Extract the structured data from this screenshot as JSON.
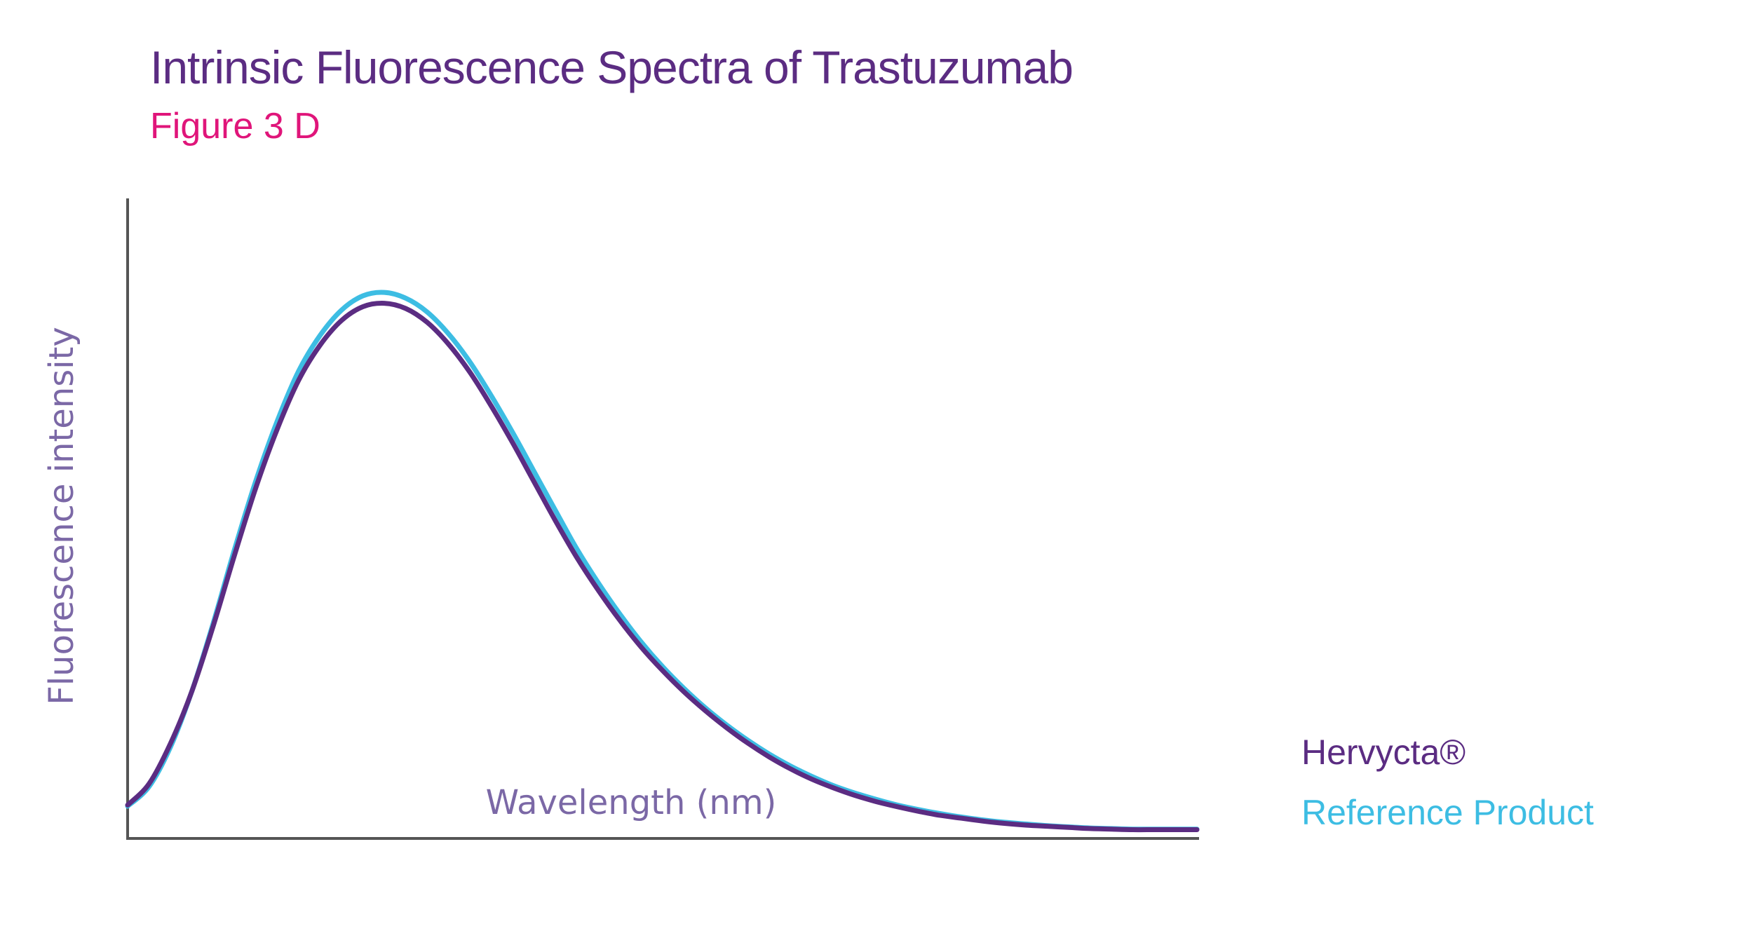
{
  "title": "Intrinsic Fluorescence Spectra of Trastuzumab",
  "subtitle": "Figure 3 D",
  "colors": {
    "title": "#5b2c82",
    "subtitle": "#e0157a",
    "axis_label": "#7b68a6",
    "axis": "#555555"
  },
  "chart_data": {
    "type": "line",
    "title": "Intrinsic Fluorescence Spectra of Trastuzumab",
    "subtitle": "Figure 3 D",
    "xlabel": "Wavelength (nm)",
    "ylabel": "Fluorescence intensity",
    "x_ticks": [],
    "y_ticks": [],
    "xlim": [
      0,
      100
    ],
    "ylim": [
      0,
      100
    ],
    "grid": false,
    "legend_position": "bottom-right",
    "x": [
      0,
      2,
      4,
      6,
      8,
      10,
      12,
      14,
      16,
      18,
      20,
      22,
      24,
      26,
      28,
      30,
      32,
      34,
      36,
      38,
      40,
      42,
      44,
      46,
      48,
      50,
      52,
      54,
      56,
      58,
      60,
      62,
      64,
      66,
      68,
      70,
      72,
      74,
      76,
      78,
      80,
      82,
      84,
      86,
      88,
      90,
      92,
      94,
      96,
      98,
      100
    ],
    "series": [
      {
        "name": "Hervycta®",
        "color": "#5b2c82",
        "values": [
          4.6,
          8.3,
          15.3,
          24.4,
          35.8,
          48.2,
          60.0,
          70.2,
          78.7,
          84.8,
          89.1,
          91.5,
          92.1,
          91.2,
          88.8,
          85.0,
          80.1,
          74.2,
          67.8,
          61.0,
          54.2,
          47.8,
          42.1,
          36.9,
          32.2,
          28.1,
          24.4,
          21.1,
          18.1,
          15.4,
          13.0,
          10.9,
          9.1,
          7.6,
          6.3,
          5.2,
          4.3,
          3.5,
          2.8,
          2.3,
          1.8,
          1.4,
          1.1,
          0.9,
          0.7,
          0.5,
          0.4,
          0.3,
          0.3,
          0.3,
          0.3
        ]
      },
      {
        "name": "Reference Product",
        "color": "#3dbde3",
        "values": [
          4.4,
          7.8,
          14.7,
          24.4,
          36.3,
          49.2,
          61.2,
          71.6,
          80.3,
          86.5,
          90.9,
          93.4,
          94.0,
          93.0,
          90.6,
          86.8,
          81.9,
          76.0,
          69.6,
          62.8,
          56.0,
          49.3,
          43.4,
          38.0,
          33.1,
          28.8,
          25.0,
          21.6,
          18.6,
          15.9,
          13.5,
          11.4,
          9.6,
          8.0,
          6.7,
          5.6,
          4.6,
          3.8,
          3.1,
          2.5,
          2.0,
          1.6,
          1.3,
          1.0,
          0.8,
          0.6,
          0.5,
          0.4,
          0.4,
          0.4,
          0.4
        ]
      }
    ]
  }
}
